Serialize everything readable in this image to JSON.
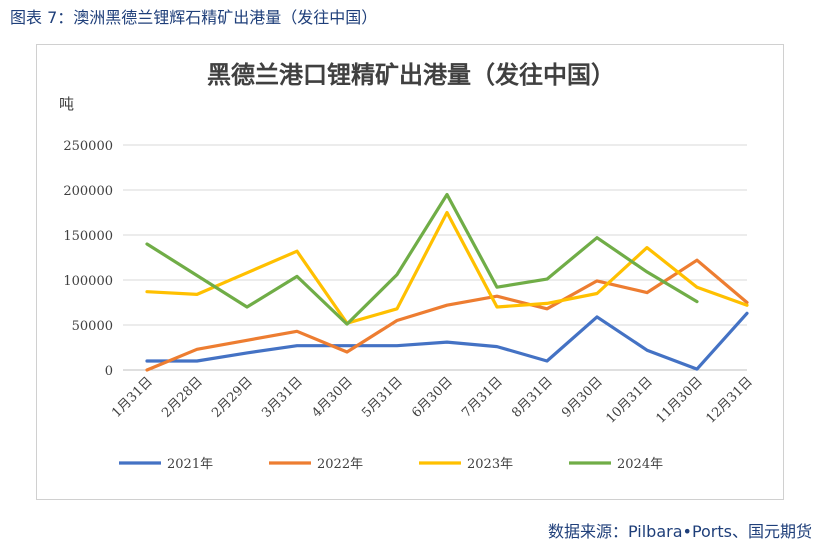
{
  "figure_caption": "图表 7：澳洲黑德兰锂辉石精矿出港量（发往中国）",
  "source_note": "数据来源：Pilbara•Ports、国元期货",
  "colors": {
    "2021年": "#4472c4",
    "2022年": "#ed7d31",
    "2023年": "#ffc000",
    "2024年": "#70ad47",
    "grid": "#d9d9d9",
    "axis": "#bfbfbf"
  },
  "chart_data": {
    "type": "line",
    "title": "黑德兰港口锂精矿出港量（发往中国）",
    "unit_label": "吨",
    "categories": [
      "1月31日",
      "2月28日",
      "2月29日",
      "3月31日",
      "4月30日",
      "5月31日",
      "6月30日",
      "7月31日",
      "8月31日",
      "9月30日",
      "10月31日",
      "11月30日",
      "12月31日"
    ],
    "y_ticks": [
      0,
      50000,
      100000,
      150000,
      200000,
      250000
    ],
    "ylim": [
      0,
      250000
    ],
    "grid": true,
    "legend_position": "bottom",
    "series": [
      {
        "name": "2021年",
        "values": [
          10000,
          10000,
          19000,
          27000,
          27000,
          27000,
          31000,
          26000,
          10000,
          59000,
          22000,
          1000,
          63000
        ]
      },
      {
        "name": "2022年",
        "values": [
          0,
          23000,
          33000,
          43000,
          20000,
          55000,
          72000,
          82000,
          68000,
          99000,
          86000,
          122000,
          75000
        ]
      },
      {
        "name": "2023年",
        "values": [
          87000,
          84000,
          108000,
          132000,
          52000,
          68000,
          175000,
          70000,
          74000,
          85000,
          136000,
          92000,
          72000
        ]
      },
      {
        "name": "2024年",
        "values": [
          140000,
          105000,
          70000,
          104000,
          51000,
          106000,
          195000,
          92000,
          101000,
          147000,
          109000,
          76000,
          null
        ]
      }
    ]
  }
}
